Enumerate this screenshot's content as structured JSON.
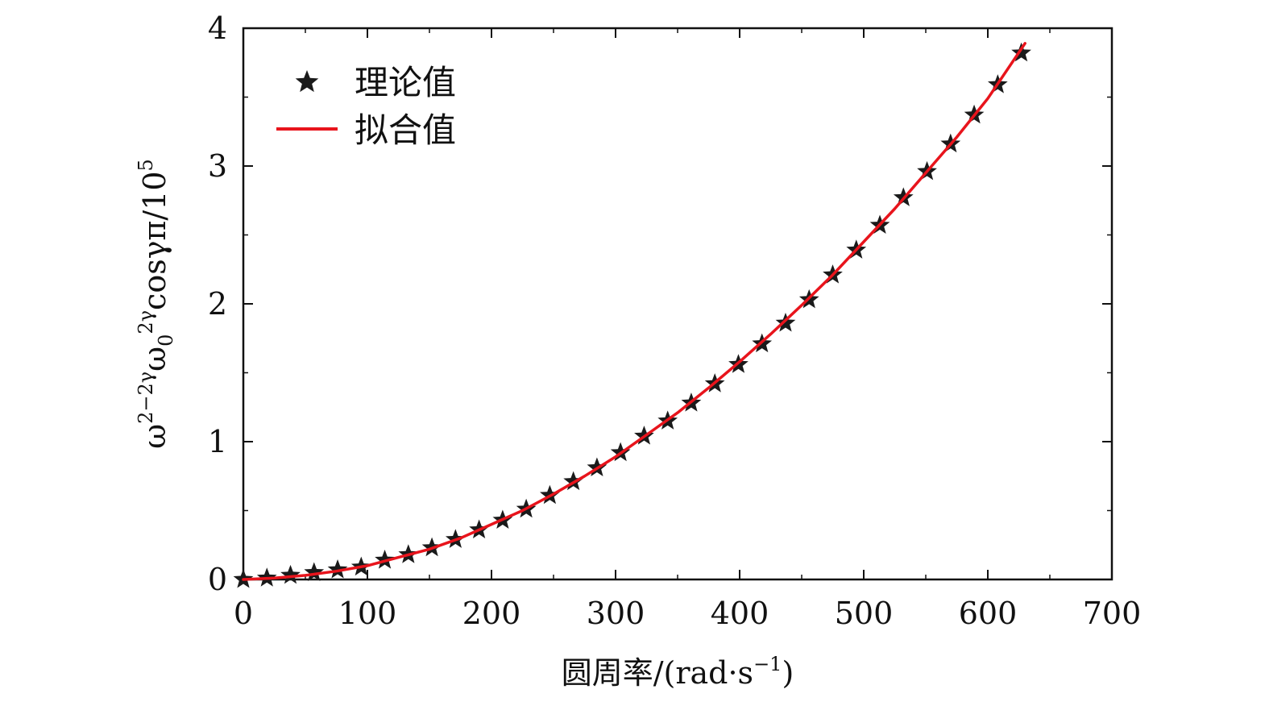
{
  "chart_data": {
    "type": "scatter",
    "xlim": [
      0,
      700
    ],
    "ylim": [
      0,
      4
    ],
    "x_ticks": [
      0,
      100,
      200,
      300,
      400,
      500,
      600,
      700
    ],
    "y_ticks": [
      0,
      1,
      2,
      3,
      4
    ],
    "x_minor_ticks": [
      50,
      150,
      250,
      350,
      450,
      550,
      650
    ],
    "y_minor_ticks": [
      0.5,
      1.5,
      2.5,
      3.5
    ],
    "grid": false,
    "legend_position": "top-left",
    "xlabel": {
      "prefix": "圆周率/(rad·s",
      "sup": "−1",
      "suffix": ")"
    },
    "ylabel": {
      "parts": [
        {
          "t": "ω"
        },
        {
          "t": "2−2γ",
          "sup": true
        },
        {
          "t": "ω"
        },
        {
          "t": "0",
          "sub": true
        },
        {
          "t": "2γ",
          "sup": true
        },
        {
          "t": "cosγπ/10"
        },
        {
          "t": "5",
          "sup": true
        }
      ]
    },
    "series": [
      {
        "name": "理论值",
        "kind": "scatter",
        "marker": "star",
        "color": "#1a1a1a",
        "x": [
          0,
          19,
          38,
          57,
          76,
          95,
          114,
          133,
          152,
          171,
          190,
          209,
          228,
          247,
          266,
          285,
          304,
          323,
          342,
          361,
          380,
          399,
          418,
          437,
          456,
          475,
          494,
          513,
          532,
          551,
          570,
          589,
          608,
          627
        ],
        "y": [
          0.0,
          0.01,
          0.03,
          0.05,
          0.07,
          0.09,
          0.14,
          0.18,
          0.23,
          0.29,
          0.36,
          0.43,
          0.51,
          0.61,
          0.71,
          0.81,
          0.92,
          1.04,
          1.15,
          1.28,
          1.42,
          1.56,
          1.71,
          1.86,
          2.03,
          2.21,
          2.39,
          2.57,
          2.77,
          2.96,
          3.16,
          3.37,
          3.59,
          3.82
        ]
      },
      {
        "name": "拟合值",
        "kind": "line",
        "color": "#e8141c",
        "x": [
          0,
          25,
          50,
          75,
          100,
          125,
          150,
          175,
          200,
          225,
          250,
          275,
          300,
          325,
          350,
          375,
          400,
          425,
          450,
          475,
          500,
          525,
          550,
          575,
          600,
          630
        ],
        "y": [
          0.0,
          0.01,
          0.03,
          0.06,
          0.1,
          0.16,
          0.22,
          0.3,
          0.4,
          0.5,
          0.62,
          0.75,
          0.89,
          1.05,
          1.21,
          1.39,
          1.58,
          1.78,
          1.99,
          2.21,
          2.45,
          2.69,
          2.95,
          3.21,
          3.49,
          3.89
        ]
      }
    ]
  }
}
